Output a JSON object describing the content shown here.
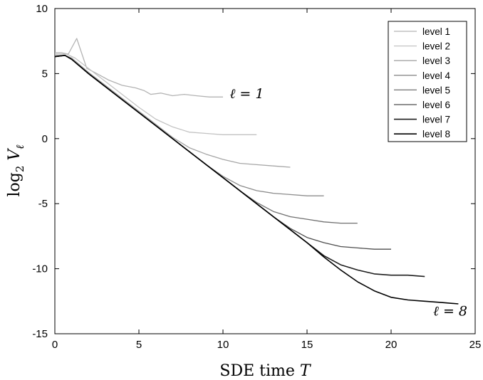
{
  "chart_data": {
    "type": "line",
    "xlabel": "SDE time T",
    "ylabel": "log2 Vℓ",
    "xlim": [
      0,
      25
    ],
    "ylim": [
      -15,
      10
    ],
    "xticks": [
      0,
      5,
      10,
      15,
      20,
      25
    ],
    "yticks": [
      10,
      5,
      0,
      -5,
      -10,
      -15
    ],
    "xtick_labels": [
      "0",
      "5",
      "10",
      "15",
      "20",
      "25"
    ],
    "ytick_labels": [
      "10",
      "5",
      "0",
      "-5",
      "-10",
      "-15"
    ],
    "grid": false,
    "legend_position": "top-right",
    "annotations": [
      {
        "text": "ℓ = 1",
        "x": 10.4,
        "y": 3.1
      },
      {
        "text": "ℓ = 8",
        "x": 22.5,
        "y": -13.6
      }
    ],
    "series": [
      {
        "name": "level 1",
        "color": "#b3b3b3",
        "x": [
          0,
          0.4,
          0.8,
          1.3,
          1.9,
          2.5,
          3.2,
          4,
          4.8,
          5.3,
          5.7,
          6.3,
          7,
          7.7,
          8.4,
          9.2,
          10
        ],
        "y": [
          6.6,
          6.6,
          6.5,
          7.7,
          5.4,
          5.0,
          4.5,
          4.1,
          3.9,
          3.7,
          3.4,
          3.5,
          3.3,
          3.4,
          3.3,
          3.2,
          3.2
        ]
      },
      {
        "name": "level 2",
        "color": "#c3c3c3",
        "x": [
          0,
          0.7,
          1.2,
          2,
          3,
          4,
          5,
          6,
          7,
          8,
          9,
          10,
          11,
          12
        ],
        "y": [
          6.5,
          6.5,
          6.2,
          5.4,
          4.4,
          3.4,
          2.4,
          1.5,
          0.9,
          0.5,
          0.4,
          0.3,
          0.3,
          0.3
        ]
      },
      {
        "name": "level 3",
        "color": "#a6a6a6",
        "x": [
          0,
          0.6,
          1,
          2,
          3,
          4,
          5,
          6,
          7,
          8,
          9,
          10,
          11,
          12,
          13,
          14
        ],
        "y": [
          6.4,
          6.4,
          6.2,
          5.1,
          4.1,
          3.1,
          2.1,
          1.1,
          0.1,
          -0.7,
          -1.2,
          -1.6,
          -1.9,
          -2.0,
          -2.1,
          -2.2
        ]
      },
      {
        "name": "level 4",
        "color": "#8c8c8c",
        "x": [
          0,
          0.6,
          1,
          2,
          4,
          6,
          8,
          9,
          10,
          11,
          12,
          13,
          14,
          15,
          16
        ],
        "y": [
          6.3,
          6.4,
          6.1,
          5.0,
          3.0,
          1.0,
          -1.0,
          -2.0,
          -2.9,
          -3.6,
          -4.0,
          -4.2,
          -4.3,
          -4.4,
          -4.4
        ]
      },
      {
        "name": "level 5",
        "color": "#707070",
        "x": [
          0,
          0.6,
          1,
          2,
          4,
          6,
          8,
          10,
          11,
          12,
          13,
          14,
          15,
          16,
          17,
          18
        ],
        "y": [
          6.3,
          6.4,
          6.1,
          5.0,
          3.0,
          1.0,
          -1.0,
          -3.0,
          -4.0,
          -4.9,
          -5.6,
          -6.0,
          -6.2,
          -6.4,
          -6.5,
          -6.5
        ]
      },
      {
        "name": "level 6",
        "color": "#4d4d4d",
        "x": [
          0,
          0.6,
          1,
          2,
          4,
          6,
          8,
          10,
          12,
          13,
          14,
          15,
          16,
          17,
          18,
          19,
          20
        ],
        "y": [
          6.3,
          6.4,
          6.1,
          5.0,
          3.0,
          1.0,
          -1.0,
          -3.0,
          -5.0,
          -6.0,
          -6.9,
          -7.6,
          -8.0,
          -8.3,
          -8.4,
          -8.5,
          -8.5
        ]
      },
      {
        "name": "level 7",
        "color": "#1e1e1e",
        "x": [
          0,
          0.6,
          1,
          2,
          4,
          6,
          8,
          10,
          12,
          14,
          15,
          16,
          17,
          18,
          19,
          20,
          21,
          22
        ],
        "y": [
          6.3,
          6.4,
          6.1,
          5.0,
          3.0,
          1.0,
          -1.0,
          -3.0,
          -5.0,
          -7.0,
          -8.0,
          -9.0,
          -9.7,
          -10.1,
          -10.4,
          -10.5,
          -10.5,
          -10.6
        ]
      },
      {
        "name": "level 8",
        "color": "#000000",
        "x": [
          0,
          0.6,
          1,
          2,
          4,
          6,
          8,
          10,
          12,
          14,
          15,
          16,
          17,
          18,
          19,
          20,
          21,
          22,
          23,
          24
        ],
        "y": [
          6.3,
          6.4,
          6.1,
          5.0,
          3.0,
          1.0,
          -1.0,
          -3.0,
          -5.0,
          -7.0,
          -8.0,
          -9.1,
          -10.1,
          -11.0,
          -11.7,
          -12.2,
          -12.4,
          -12.5,
          -12.6,
          -12.7
        ]
      }
    ]
  }
}
